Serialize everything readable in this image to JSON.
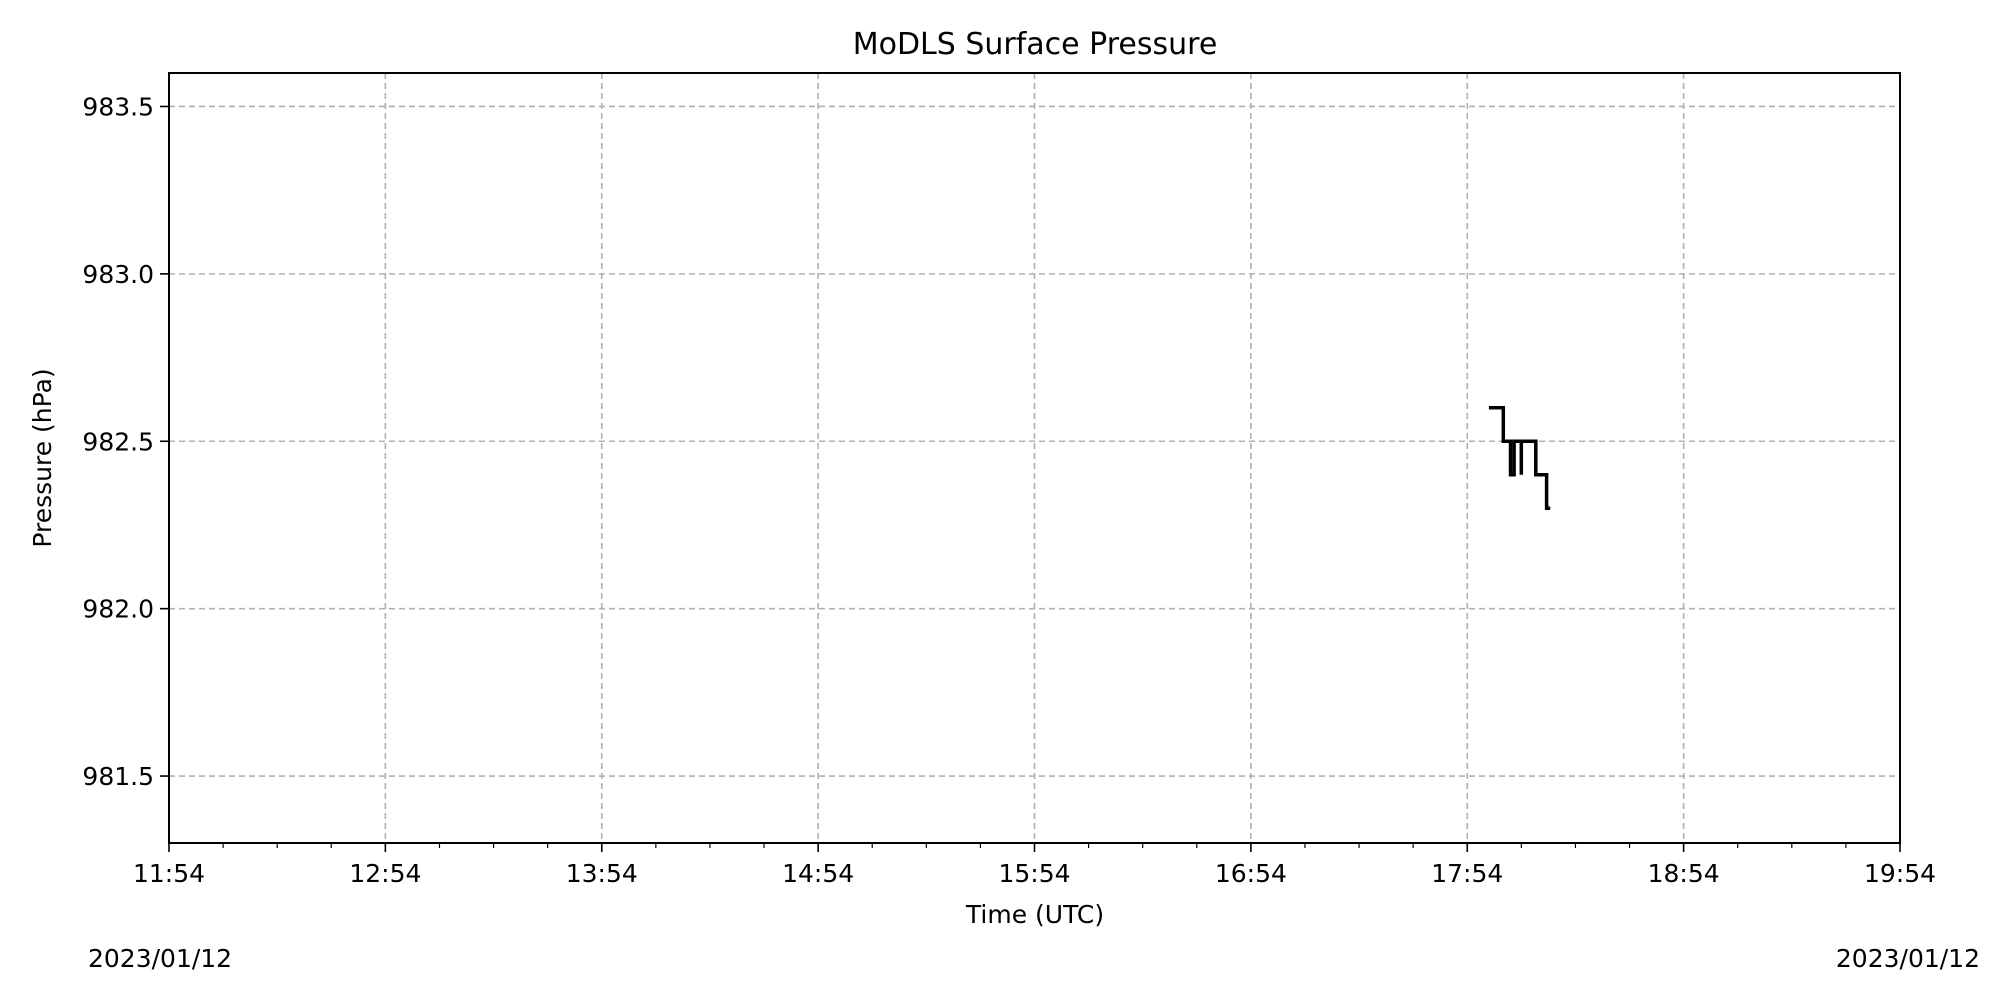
{
  "chart_data": {
    "type": "line",
    "title": "MoDLS Surface Pressure",
    "xlabel": "Time (UTC)",
    "ylabel": "Pressure (hPa)",
    "date_start": "2023/01/12",
    "date_end": "2023/01/12",
    "xlim": [
      "11:54",
      "19:54"
    ],
    "ylim": [
      981.3,
      983.6
    ],
    "x_ticks": [
      "11:54",
      "12:54",
      "13:54",
      "14:54",
      "15:54",
      "16:54",
      "17:54",
      "18:54",
      "19:54"
    ],
    "y_ticks": [
      "981.5",
      "982.0",
      "982.5",
      "983.0",
      "983.5"
    ],
    "grid": true,
    "series": [
      {
        "color": "#000000",
        "x": [
          "18:00",
          "18:04",
          "18:04",
          "18:06",
          "18:06",
          "18:06",
          "18:06",
          "18:06",
          "18:06",
          "18:07",
          "18:07",
          "18:08",
          "18:08",
          "18:09",
          "18:09",
          "18:09",
          "18:09",
          "18:11",
          "18:11",
          "18:13",
          "18:13",
          "18:16",
          "18:16",
          "18:17"
        ],
        "y": [
          982.6,
          982.6,
          982.5,
          982.5,
          982.4,
          982.5,
          982.4,
          982.5,
          982.4,
          982.4,
          982.5,
          982.5,
          982.5,
          982.5,
          982.4,
          982.4,
          982.5,
          982.5,
          982.5,
          982.5,
          982.4,
          982.4,
          982.3,
          982.3
        ]
      }
    ]
  }
}
